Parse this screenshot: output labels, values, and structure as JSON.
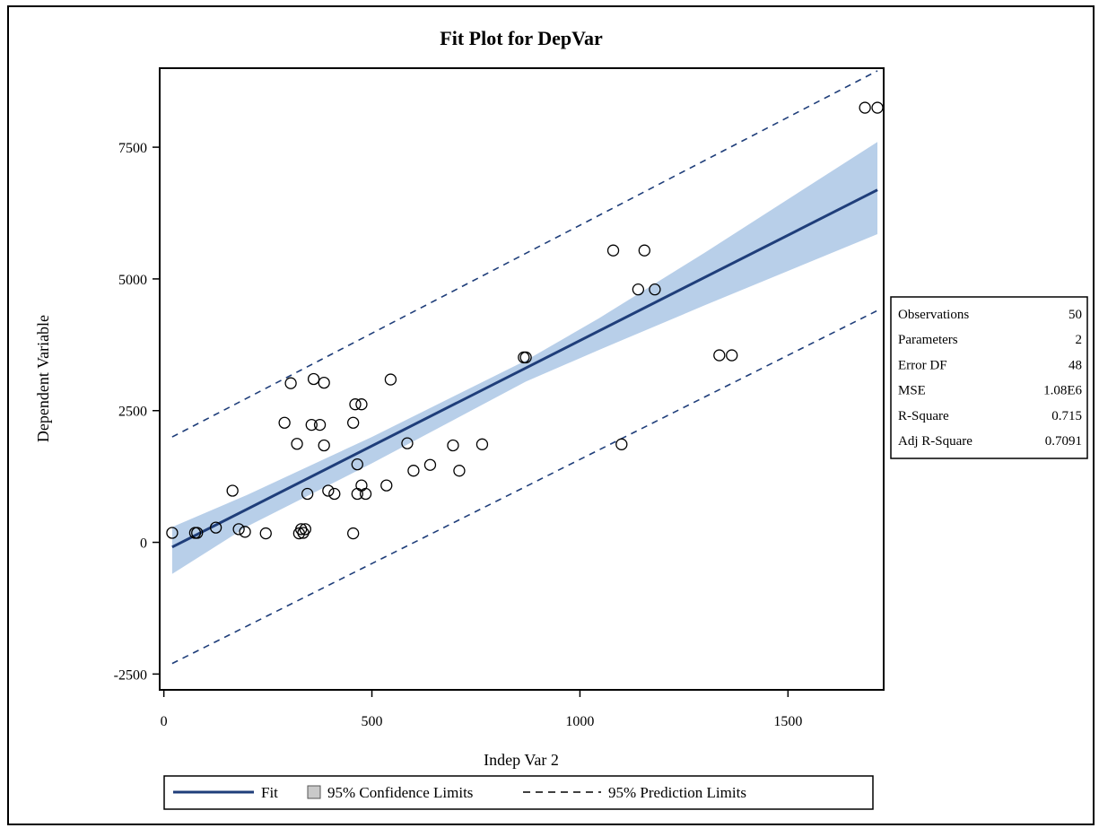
{
  "chart_data": {
    "type": "scatter",
    "title": "Fit Plot for DepVar",
    "xlabel": "Indep Var 2",
    "ylabel": "Dependent Variable",
    "xlim": [
      -10,
      1730
    ],
    "ylim": [
      -2800,
      9000
    ],
    "x_ticks": [
      0,
      500,
      1000,
      1500
    ],
    "y_ticks": [
      -2500,
      0,
      2500,
      5000,
      7500
    ],
    "grid": false,
    "fit": {
      "name": "Fit",
      "intercept": -170,
      "slope": 4.0,
      "x_range": [
        20,
        1715
      ],
      "color": "#1f3e7a"
    },
    "confidence_band": {
      "name": "95% Confidence Limits",
      "points": [
        {
          "x": 20,
          "lower": -600,
          "upper": 290
        },
        {
          "x": 200,
          "lower": 300,
          "upper": 900
        },
        {
          "x": 500,
          "lower": 1500,
          "upper": 2000
        },
        {
          "x": 870,
          "lower": 3050,
          "upper": 3450
        },
        {
          "x": 1045,
          "lower": 3650,
          "upper": 4250
        },
        {
          "x": 1300,
          "lower": 4500,
          "upper": 5500
        },
        {
          "x": 1715,
          "lower": 5850,
          "upper": 7600
        }
      ],
      "color": "#b8cfe9"
    },
    "prediction_band": {
      "name": "95% Prediction Limits",
      "lower": [
        [
          20,
          -2300
        ],
        [
          1715,
          4400
        ]
      ],
      "upper": [
        [
          20,
          2000
        ],
        [
          1715,
          8950
        ]
      ],
      "color": "#1f3e7a"
    },
    "points": [
      [
        20,
        180
      ],
      [
        75,
        180
      ],
      [
        80,
        180
      ],
      [
        125,
        280
      ],
      [
        165,
        980
      ],
      [
        180,
        250
      ],
      [
        195,
        200
      ],
      [
        245,
        170
      ],
      [
        290,
        2270
      ],
      [
        305,
        3020
      ],
      [
        320,
        1870
      ],
      [
        325,
        170
      ],
      [
        330,
        250
      ],
      [
        335,
        180
      ],
      [
        340,
        250
      ],
      [
        345,
        920
      ],
      [
        355,
        2230
      ],
      [
        360,
        3100
      ],
      [
        375,
        2230
      ],
      [
        385,
        1840
      ],
      [
        385,
        3030
      ],
      [
        395,
        980
      ],
      [
        410,
        920
      ],
      [
        455,
        170
      ],
      [
        455,
        2270
      ],
      [
        460,
        2620
      ],
      [
        465,
        920
      ],
      [
        465,
        1480
      ],
      [
        475,
        1080
      ],
      [
        475,
        2620
      ],
      [
        485,
        920
      ],
      [
        535,
        1080
      ],
      [
        545,
        3090
      ],
      [
        585,
        1880
      ],
      [
        600,
        1360
      ],
      [
        640,
        1470
      ],
      [
        695,
        1840
      ],
      [
        710,
        1360
      ],
      [
        765,
        1860
      ],
      [
        865,
        3510
      ],
      [
        870,
        3510
      ],
      [
        1080,
        5540
      ],
      [
        1100,
        1860
      ],
      [
        1140,
        4800
      ],
      [
        1155,
        5540
      ],
      [
        1180,
        4800
      ],
      [
        1335,
        3550
      ],
      [
        1365,
        3550
      ],
      [
        1685,
        8250
      ],
      [
        1715,
        8250
      ]
    ],
    "legend": {
      "position": "bottom",
      "items": [
        {
          "label": "Fit",
          "kind": "line"
        },
        {
          "label": "95% Confidence Limits",
          "kind": "fill"
        },
        {
          "label": "95% Prediction Limits",
          "kind": "dash"
        }
      ]
    },
    "stats": [
      {
        "label": "Observations",
        "value": "50"
      },
      {
        "label": "Parameters",
        "value": "2"
      },
      {
        "label": "Error DF",
        "value": "48"
      },
      {
        "label": "MSE",
        "value": "1.08E6"
      },
      {
        "label": "R-Square",
        "value": "0.715"
      },
      {
        "label": "Adj R-Square",
        "value": "0.7091"
      }
    ]
  }
}
